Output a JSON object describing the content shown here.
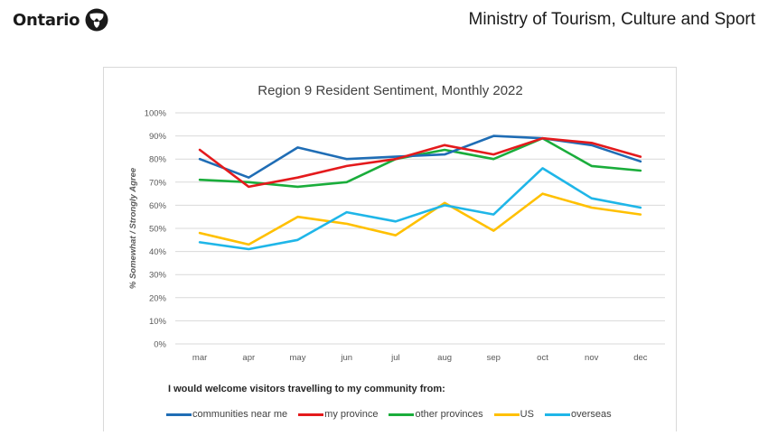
{
  "header": {
    "brand": "Ontario",
    "brand_icon": "trillium-logo-icon",
    "ministry": "Ministry of Tourism, Culture and Sport"
  },
  "chart_data": {
    "type": "line",
    "title": "Region 9 Resident Sentiment, Monthly 2022",
    "ylabel": "% Somewhat / Strongly Agree",
    "xlabel": "",
    "categories": [
      "mar",
      "apr",
      "may",
      "jun",
      "jul",
      "aug",
      "sep",
      "oct",
      "nov",
      "dec"
    ],
    "ylim": [
      0,
      100
    ],
    "yticks": [
      "0%",
      "10%",
      "20%",
      "30%",
      "40%",
      "50%",
      "60%",
      "70%",
      "80%",
      "90%",
      "100%"
    ],
    "grid": true,
    "legend_title": "I would welcome visitors travelling to my community from:",
    "legend_position": "bottom",
    "series": [
      {
        "name": "communities near me",
        "color": "#1f6db5",
        "values": [
          80,
          72,
          85,
          80,
          81,
          82,
          90,
          89,
          86,
          79
        ]
      },
      {
        "name": "my province",
        "color": "#e41a1c",
        "values": [
          84,
          68,
          72,
          77,
          80,
          86,
          82,
          89,
          87,
          81
        ]
      },
      {
        "name": "other provinces",
        "color": "#1aad3b",
        "values": [
          71,
          70,
          68,
          70,
          80,
          84,
          80,
          89,
          77,
          75
        ]
      },
      {
        "name": "US",
        "color": "#ffc000",
        "values": [
          48,
          43,
          55,
          52,
          47,
          61,
          49,
          65,
          59,
          56
        ]
      },
      {
        "name": "overseas",
        "color": "#1fb6e8",
        "values": [
          44,
          41,
          45,
          57,
          53,
          60,
          56,
          76,
          63,
          59
        ]
      }
    ]
  }
}
